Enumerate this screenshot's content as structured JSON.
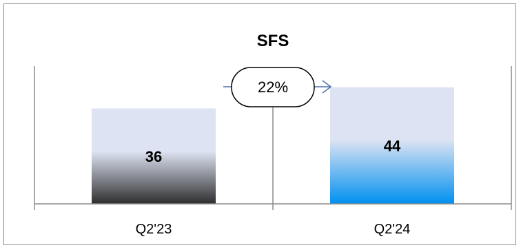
{
  "chart_data": {
    "type": "bar",
    "title": "SFS",
    "categories": [
      "Q2'23",
      "Q2'24"
    ],
    "values": [
      36,
      44
    ],
    "data_labels": [
      "36",
      "44"
    ],
    "xlabel": "",
    "ylabel": "",
    "ylim": [
      0,
      52
    ],
    "grid": false,
    "legend": "none",
    "annotation": {
      "text": "22%"
    },
    "colors": {
      "q223_bar_top": "#dde3f2",
      "q223_bar_bottom": "#2e2e2e",
      "q224_bar_top": "#dde3f2",
      "q224_bar_bottom": "#0090f0",
      "axis": "#8c8c8c",
      "arrow": "#4f6fa8"
    }
  }
}
